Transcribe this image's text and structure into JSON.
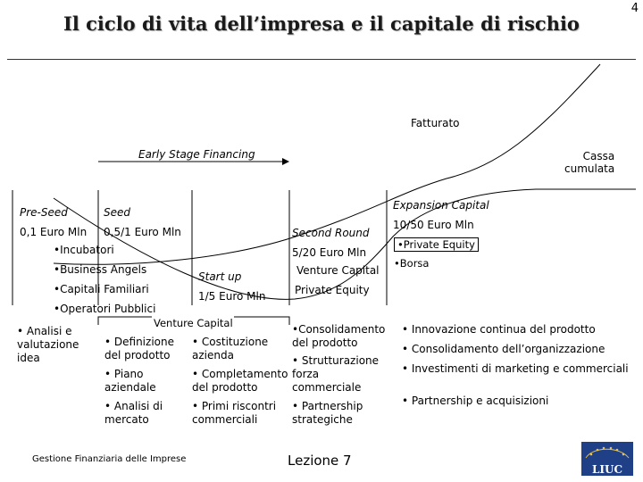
{
  "slide": {
    "number": "4",
    "title": "Il ciclo di vita dell’impresa e il capitale di rischio",
    "footer_course": "Gestione Finanziaria delle Imprese",
    "footer_lesson": "Lezione 7",
    "logo_text": "LIUC"
  },
  "curves": {
    "revenue_label": "Fatturato",
    "cash_label_line1": "Cassa",
    "cash_label_line2": "cumulata",
    "early_stage_label": "Early Stage Financing"
  },
  "stages": {
    "pre_seed": {
      "label": "Pre-Seed",
      "amount": "0,1 Euro Mln"
    },
    "seed": {
      "label": "Seed",
      "amount": "0,5/1 Euro Mln"
    },
    "start_up": {
      "label": "Start up",
      "amount": "1/5 Euro Mln"
    },
    "second_round": {
      "label": "Second Round",
      "amount": "5/20 Euro Mln"
    },
    "expansion": {
      "label": "Expansion Capital",
      "amount": "10/50 Euro Mln"
    }
  },
  "sources": {
    "incubatori": "•Incubatori",
    "business_angels": "•Business Angels",
    "capitali_familiari": "•Capitali Familiari",
    "operatori_pubblici": "•Operatori Pubblici",
    "venture_capital_mid": "Venture Capital",
    "venture_capital_second": "Venture Capital",
    "private_equity_second": "Private Equity",
    "private_equity_exp": "•Private Equity",
    "borsa": "•Borsa"
  },
  "activities": {
    "col1": [
      "• Analisi e valutazione idea"
    ],
    "col2": [
      "• Definizione del prodotto",
      "• Piano aziendale",
      "• Analisi di mercato"
    ],
    "col3": [
      "• Costituzione azienda",
      "• Completamento del prodotto",
      "• Primi riscontri commerciali"
    ],
    "col4": [
      "•Consolidamento del prodotto",
      "• Strutturazione forza commerciale",
      "• Partnership strategiche"
    ],
    "col5": [
      "• Innovazione continua del prodotto",
      "• Consolidamento dell’organizzazione",
      "• Investimenti di marketing e commerciali",
      "• Partnership e acquisizioni"
    ]
  }
}
